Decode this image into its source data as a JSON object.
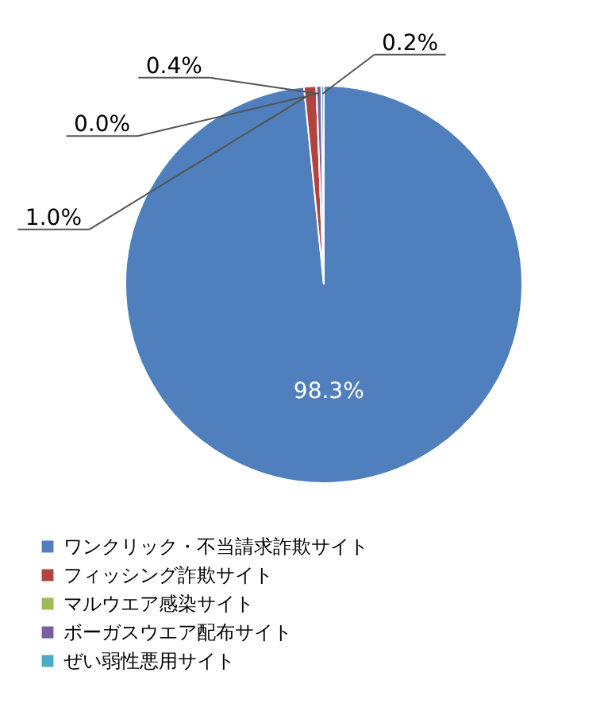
{
  "chart_data": {
    "type": "pie",
    "categories": [
      "ワンクリック・不当請求詐欺サイト",
      "フィッシング詐欺サイト",
      "マルウエア感染サイト",
      "ボーガスウエア配布サイト",
      "ぜい弱性悪用サイト"
    ],
    "values": [
      98.3,
      1.0,
      0.0,
      0.4,
      0.2
    ],
    "colors": [
      "#4f7fbc",
      "#b2433e",
      "#9bbb59",
      "#7b5fa0",
      "#4bacc6"
    ],
    "value_labels": [
      "98.3%",
      "1.0%",
      "0.0%",
      "0.4%",
      "0.2%"
    ],
    "legend": "bottom"
  }
}
